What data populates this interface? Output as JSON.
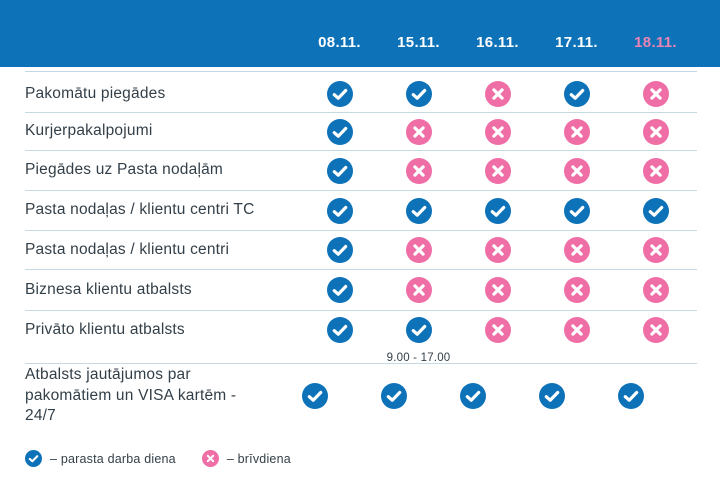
{
  "header": {
    "dates": [
      {
        "label": "08.11.",
        "highlight": false
      },
      {
        "label": "15.11.",
        "highlight": false
      },
      {
        "label": "16.11.",
        "highlight": false
      },
      {
        "label": "17.11.",
        "highlight": false
      },
      {
        "label": "18.11.",
        "highlight": true
      }
    ]
  },
  "table": {
    "rows": [
      {
        "label": "Pakomātu piegādes",
        "marks": [
          "check",
          "check",
          "cross",
          "check",
          "cross"
        ]
      },
      {
        "label": "Kurjerpakalpojumi",
        "marks": [
          "check",
          "cross",
          "cross",
          "cross",
          "cross"
        ]
      },
      {
        "label": "Piegādes uz Pasta nodaļām",
        "marks": [
          "check",
          "cross",
          "cross",
          "cross",
          "cross"
        ]
      },
      {
        "label": "Pasta nodaļas / klientu centri TC",
        "marks": [
          "check",
          "check",
          "check",
          "check",
          "check"
        ]
      },
      {
        "label": "Pasta nodaļas / klientu centri",
        "marks": [
          "check",
          "cross",
          "cross",
          "cross",
          "cross"
        ]
      },
      {
        "label": "Biznesa klientu atbalsts",
        "marks": [
          "check",
          "cross",
          "cross",
          "cross",
          "cross"
        ]
      },
      {
        "label": "Privāto klientu atbalsts",
        "marks": [
          "check",
          "check",
          "cross",
          "cross",
          "cross"
        ],
        "note": {
          "column": 2,
          "text": "9.00 - 17.00"
        }
      },
      {
        "label": "Atbalsts jautājumos par pakomātiem un VISA kartēm - 24/7",
        "marks": [
          "check",
          "check",
          "check",
          "check",
          "check"
        ]
      }
    ]
  },
  "legend": [
    {
      "icon": "check",
      "label": "– parasta darba diena"
    },
    {
      "icon": "cross",
      "label": "– brīvdiena"
    }
  ],
  "colors": {
    "brand_blue": "#0d72b8",
    "pink": "#ef6ea6",
    "date_highlight_pink": "#ea84b4",
    "text_dark": "#333f48",
    "divider": "#c4d9e2"
  },
  "chart_data": {
    "type": "table",
    "title": "",
    "columns": [
      "08.11.",
      "15.11.",
      "16.11.",
      "17.11.",
      "18.11."
    ],
    "rows": [
      {
        "label": "Pakomātu piegādes",
        "values": [
          "working",
          "working",
          "holiday",
          "working",
          "holiday"
        ]
      },
      {
        "label": "Kurjerpakalpojumi",
        "values": [
          "working",
          "holiday",
          "holiday",
          "holiday",
          "holiday"
        ]
      },
      {
        "label": "Piegādes uz Pasta nodaļām",
        "values": [
          "working",
          "holiday",
          "holiday",
          "holiday",
          "holiday"
        ]
      },
      {
        "label": "Pasta nodaļas / klientu centri TC",
        "values": [
          "working",
          "working",
          "working",
          "working",
          "working"
        ]
      },
      {
        "label": "Pasta nodaļas / klientu centri",
        "values": [
          "working",
          "holiday",
          "holiday",
          "holiday",
          "holiday"
        ]
      },
      {
        "label": "Biznesa klientu atbalsts",
        "values": [
          "working",
          "holiday",
          "holiday",
          "holiday",
          "holiday"
        ]
      },
      {
        "label": "Privāto klientu atbalsts",
        "values": [
          "working",
          "working (9.00 - 17.00)",
          "holiday",
          "holiday",
          "holiday"
        ]
      },
      {
        "label": "Atbalsts jautājumos par pakomātiem un VISA kartēm - 24/7",
        "values": [
          "working",
          "working",
          "working",
          "working",
          "working"
        ]
      }
    ],
    "legend": [
      {
        "symbol": "blue check",
        "meaning": "parasta darba diena"
      },
      {
        "symbol": "pink cross",
        "meaning": "brīvdiena"
      }
    ]
  }
}
